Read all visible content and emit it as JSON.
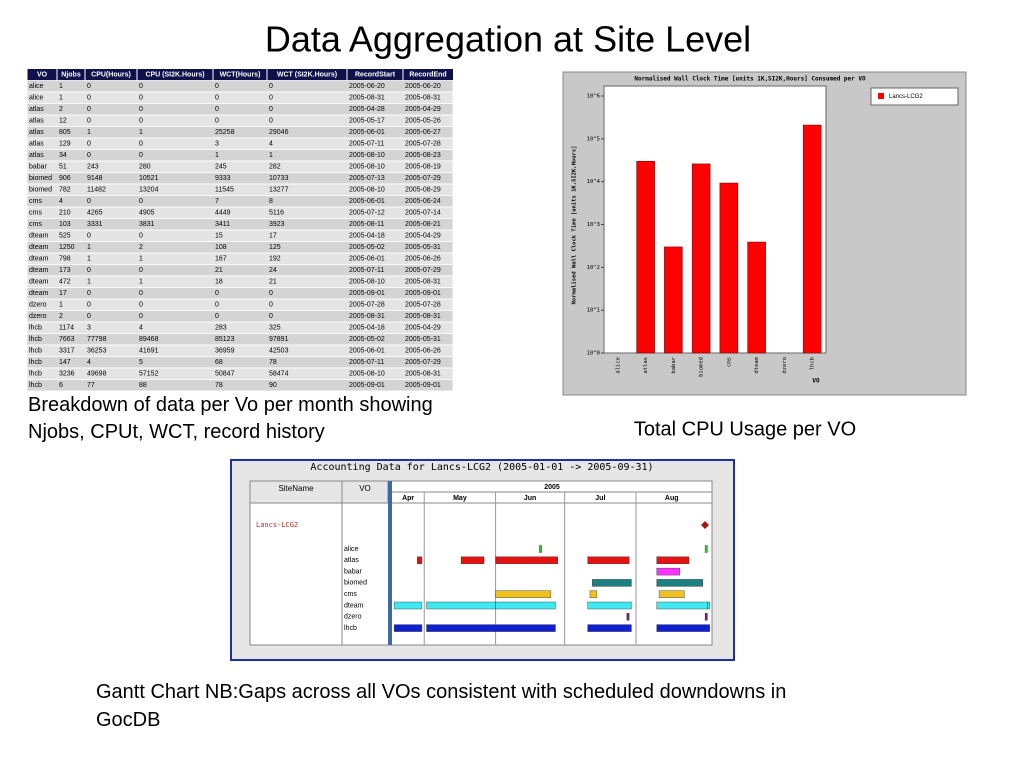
{
  "title": "Data Aggregation at Site Level",
  "table": {
    "headers": [
      "VO",
      "Njobs",
      "CPU(Hours)",
      "CPU (SI2K.Hours)",
      "WCT(Hours)",
      "WCT (SI2K.Hours)",
      "RecordStart",
      "RecordEnd"
    ],
    "rows": [
      [
        "alice",
        1,
        0,
        0,
        0,
        0,
        "2005-06-20",
        "2005-06-20"
      ],
      [
        "alice",
        1,
        0,
        0,
        0,
        0,
        "2005-08-31",
        "2005-08-31"
      ],
      [
        "atlas",
        2,
        0,
        0,
        0,
        0,
        "2005-04-28",
        "2005-04-29"
      ],
      [
        "atlas",
        12,
        0,
        0,
        0,
        0,
        "2005-05-17",
        "2005-05-26"
      ],
      [
        "atlas",
        805,
        1,
        1,
        25258,
        29046,
        "2005-06-01",
        "2005-06-27"
      ],
      [
        "atlas",
        129,
        0,
        0,
        3,
        4,
        "2005-07-11",
        "2005-07-28"
      ],
      [
        "atlas",
        34,
        0,
        0,
        1,
        1,
        "2005-08-10",
        "2005-08-23"
      ],
      [
        "babar",
        51,
        243,
        280,
        245,
        282,
        "2005-08-10",
        "2005-08-19"
      ],
      [
        "biomed",
        906,
        9148,
        10521,
        9333,
        10733,
        "2005-07-13",
        "2005-07-29"
      ],
      [
        "biomed",
        782,
        11482,
        13204,
        11545,
        13277,
        "2005-08-10",
        "2005-08-29"
      ],
      [
        "cms",
        4,
        0,
        0,
        7,
        8,
        "2005-06-01",
        "2005-06-24"
      ],
      [
        "cms",
        210,
        4265,
        4905,
        4449,
        5116,
        "2005-07-12",
        "2005-07-14"
      ],
      [
        "cms",
        103,
        3331,
        3831,
        3411,
        3923,
        "2005-08-11",
        "2005-08-21"
      ],
      [
        "dteam",
        525,
        0,
        0,
        15,
        17,
        "2005-04-18",
        "2005-04-29"
      ],
      [
        "dteam",
        1250,
        1,
        2,
        108,
        125,
        "2005-05-02",
        "2005-05-31"
      ],
      [
        "dteam",
        798,
        1,
        1,
        167,
        192,
        "2005-06-01",
        "2005-06-26"
      ],
      [
        "dteam",
        173,
        0,
        0,
        21,
        24,
        "2005-07-11",
        "2005-07-29"
      ],
      [
        "dteam",
        472,
        1,
        1,
        18,
        21,
        "2005-08-10",
        "2005-08-31"
      ],
      [
        "dteam",
        17,
        0,
        0,
        0,
        0,
        "2005-09-01",
        "2005-09-01"
      ],
      [
        "dzero",
        1,
        0,
        0,
        0,
        0,
        "2005-07-28",
        "2005-07-28"
      ],
      [
        "dzero",
        2,
        0,
        0,
        0,
        0,
        "2005-08-31",
        "2005-08-31"
      ],
      [
        "lhcb",
        1174,
        3,
        4,
        283,
        325,
        "2005-04-18",
        "2005-04-29"
      ],
      [
        "lhcb",
        7663,
        77798,
        89468,
        85123,
        97891,
        "2005-05-02",
        "2005-05-31"
      ],
      [
        "lhcb",
        3317,
        36253,
        41691,
        36959,
        42503,
        "2005-06-01",
        "2005-06-26"
      ],
      [
        "lhcb",
        147,
        4,
        5,
        68,
        78,
        "2005-07-11",
        "2005-07-29"
      ],
      [
        "lhcb",
        3236,
        49698,
        57152,
        50847,
        58474,
        "2005-08-10",
        "2005-08-31"
      ],
      [
        "lhcb",
        6,
        77,
        88,
        78,
        90,
        "2005-09-01",
        "2005-09-01"
      ]
    ],
    "caption": "Breakdown of data per Vo per month showing Njobs, CPUt, WCT, record history"
  },
  "chart_data": {
    "type": "bar",
    "title": "Normalised Wall Clock Time [units 1K,SI2K,Hours] Consumed per VO",
    "y_label": "Normalised Wall Clock Time [units 1K,SI2K,Hours]",
    "x_label": "VO",
    "categories": [
      "alice",
      "atlas",
      "babar",
      "biomed",
      "cms",
      "dteam",
      "dzero",
      "lhcb"
    ],
    "series": [
      {
        "name": "Lancs-LCG2",
        "color": "#ff0000",
        "values": [
          null,
          30000,
          300,
          26000,
          9300,
          390,
          null,
          210000
        ]
      }
    ],
    "log_scale": true,
    "ylim": [
      1,
      1000000
    ],
    "yticks": [
      {
        "value": 1,
        "label": "10^0"
      },
      {
        "value": 10,
        "label": "10^1"
      },
      {
        "value": 100,
        "label": "10^2"
      },
      {
        "value": 1000,
        "label": "10^3"
      },
      {
        "value": 10000,
        "label": "10^4"
      },
      {
        "value": 100000,
        "label": "10^5"
      },
      {
        "value": 1000000,
        "label": "10^6"
      }
    ],
    "legend": "top-right",
    "caption": "Total CPU Usage per VO"
  },
  "gantt": {
    "title": "Accounting Data for Lancs-LCG2 (2005-01-01 -> 2005-09-31)",
    "headers": [
      "SiteName",
      "VO"
    ],
    "year": "2005",
    "months": [
      "Apr",
      "May",
      "Jun",
      "Jul",
      "Aug"
    ],
    "xlim": [
      "2005-04-17",
      "2005-09-03"
    ],
    "site": "Lancs-LCG2",
    "vos": [
      {
        "name": "alice",
        "color": "#33cc33"
      },
      {
        "name": "atlas",
        "color": "#e81010"
      },
      {
        "name": "babar",
        "color": "#ff33ff"
      },
      {
        "name": "biomed",
        "color": "#1a8080"
      },
      {
        "name": "cms",
        "color": "#f0c020"
      },
      {
        "name": "dteam",
        "color": "#40e8f0"
      },
      {
        "name": "dzero",
        "color": "#702070"
      },
      {
        "name": "lhcb",
        "color": "#1020d0"
      }
    ],
    "caption": "Gantt Chart NB:Gaps across all VOs consistent with scheduled downdowns in GocDB"
  }
}
